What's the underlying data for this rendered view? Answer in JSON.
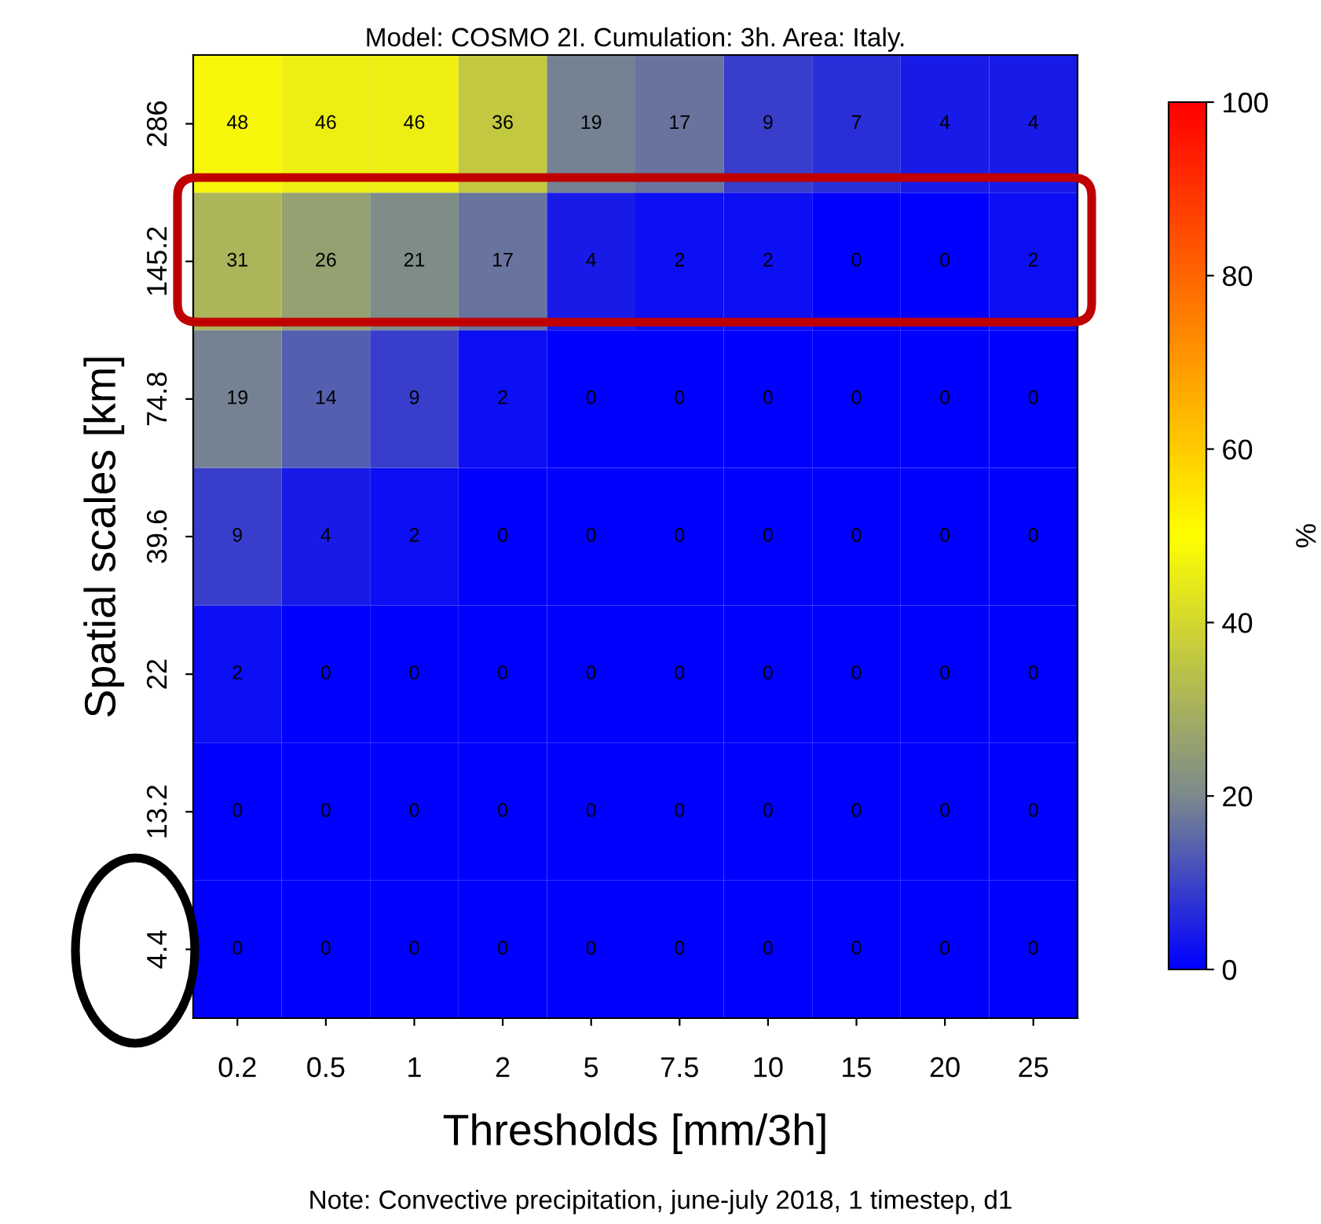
{
  "chart_data": {
    "type": "heatmap",
    "title": "Model: COSMO 2I. Cumulation: 3h. Area: Italy.",
    "xlabel": "Thresholds [mm/3h]",
    "ylabel": "Spatial scales [km]",
    "clabel": "%",
    "annotations": [
      "Note: Convective precipitation, june-july 2018, 1 timestep, d1"
    ],
    "categories": [
      "0.2",
      "0.5",
      "1",
      "2",
      "5",
      "7.5",
      "10",
      "15",
      "20",
      "25"
    ],
    "y_categories": [
      "286",
      "145.2",
      "74.8",
      "39.6",
      "22",
      "13.2",
      "4.4"
    ],
    "cells": [
      [
        48,
        46,
        46,
        36,
        19,
        17,
        9,
        7,
        4,
        4
      ],
      [
        31,
        26,
        21,
        17,
        4,
        2,
        2,
        0,
        0,
        2
      ],
      [
        19,
        14,
        9,
        2,
        0,
        0,
        0,
        0,
        0,
        0
      ],
      [
        9,
        4,
        2,
        0,
        0,
        0,
        0,
        0,
        0,
        0
      ],
      [
        2,
        0,
        0,
        0,
        0,
        0,
        0,
        0,
        0,
        0
      ],
      [
        0,
        0,
        0,
        0,
        0,
        0,
        0,
        0,
        0,
        0
      ],
      [
        0,
        0,
        0,
        0,
        0,
        0,
        0,
        0,
        0,
        0
      ]
    ],
    "data_labels": true,
    "clim": [
      0,
      100
    ],
    "cticks": [
      0,
      20,
      40,
      60,
      80,
      100
    ]
  }
}
